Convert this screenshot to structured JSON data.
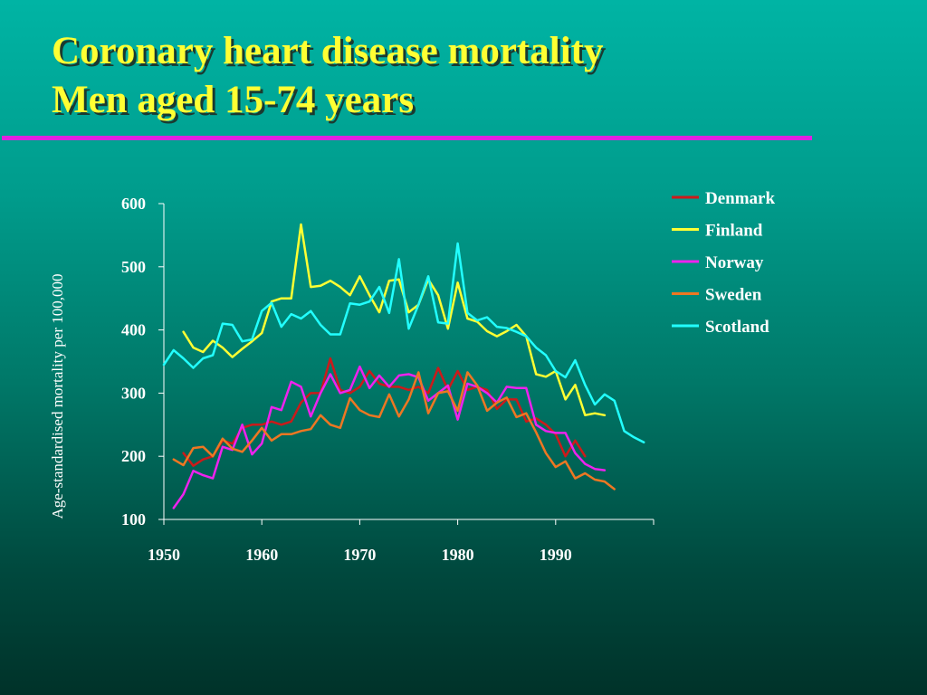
{
  "slide": {
    "title_line1": "Coronary heart disease mortality",
    "title_line2": "Men aged 15-74 years",
    "rule_color": "#e020e0"
  },
  "chart_data": {
    "type": "line",
    "title": "",
    "xlabel": "",
    "ylabel": "Age-standardised mortality per 100,000",
    "xlim": [
      1950,
      2000
    ],
    "ylim": [
      100,
      600
    ],
    "xticks": [
      1950,
      1960,
      1970,
      1980,
      1990
    ],
    "yticks": [
      100,
      200,
      300,
      400,
      500,
      600
    ],
    "grid": false,
    "legend_position": "top-right",
    "series": [
      {
        "name": "Denmark",
        "color": "#cc1a1a",
        "x": [
          1952,
          1953,
          1954,
          1955,
          1956,
          1957,
          1958,
          1959,
          1960,
          1961,
          1962,
          1963,
          1964,
          1965,
          1966,
          1967,
          1968,
          1969,
          1970,
          1971,
          1972,
          1973,
          1974,
          1975,
          1976,
          1977,
          1978,
          1979,
          1980,
          1981,
          1982,
          1983,
          1984,
          1985,
          1986,
          1987,
          1988,
          1989,
          1990,
          1991,
          1992,
          1993
        ],
        "y": [
          205,
          185,
          195,
          200,
          225,
          220,
          245,
          250,
          250,
          255,
          250,
          255,
          285,
          300,
          300,
          355,
          305,
          300,
          310,
          335,
          315,
          310,
          310,
          305,
          310,
          300,
          340,
          305,
          335,
          305,
          310,
          305,
          275,
          290,
          290,
          255,
          260,
          250,
          235,
          200,
          225,
          200
        ]
      },
      {
        "name": "Finland",
        "color": "#ffff33",
        "x": [
          1952,
          1953,
          1954,
          1955,
          1956,
          1957,
          1958,
          1959,
          1960,
          1961,
          1962,
          1963,
          1964,
          1965,
          1966,
          1967,
          1968,
          1969,
          1970,
          1971,
          1972,
          1973,
          1974,
          1975,
          1976,
          1977,
          1978,
          1979,
          1980,
          1981,
          1982,
          1983,
          1984,
          1985,
          1986,
          1987,
          1988,
          1989,
          1990,
          1991,
          1992,
          1993,
          1994,
          1995
        ],
        "y": [
          397,
          372,
          365,
          383,
          372,
          357,
          370,
          382,
          395,
          445,
          450,
          450,
          567,
          468,
          470,
          478,
          468,
          455,
          485,
          455,
          428,
          478,
          480,
          428,
          440,
          480,
          455,
          402,
          475,
          418,
          413,
          398,
          390,
          398,
          408,
          390,
          330,
          326,
          335,
          290,
          313,
          265,
          268,
          265
        ]
      },
      {
        "name": "Norway",
        "color": "#ee22ee",
        "x": [
          1951,
          1952,
          1953,
          1954,
          1955,
          1956,
          1957,
          1958,
          1959,
          1960,
          1961,
          1962,
          1963,
          1964,
          1965,
          1966,
          1967,
          1968,
          1969,
          1970,
          1971,
          1972,
          1973,
          1974,
          1975,
          1976,
          1977,
          1978,
          1979,
          1980,
          1981,
          1982,
          1983,
          1984,
          1985,
          1986,
          1987,
          1988,
          1989,
          1990,
          1991,
          1992,
          1993,
          1994,
          1995
        ],
        "y": [
          118,
          140,
          177,
          170,
          165,
          215,
          210,
          250,
          203,
          220,
          278,
          273,
          318,
          310,
          263,
          300,
          330,
          300,
          305,
          342,
          308,
          328,
          310,
          328,
          330,
          325,
          288,
          300,
          312,
          258,
          315,
          310,
          300,
          285,
          310,
          308,
          308,
          250,
          240,
          237,
          237,
          205,
          188,
          180,
          178
        ]
      },
      {
        "name": "Sweden",
        "color": "#ee7722",
        "x": [
          1951,
          1952,
          1953,
          1954,
          1955,
          1956,
          1957,
          1958,
          1959,
          1960,
          1961,
          1962,
          1963,
          1964,
          1965,
          1966,
          1967,
          1968,
          1969,
          1970,
          1971,
          1972,
          1973,
          1974,
          1975,
          1976,
          1977,
          1978,
          1979,
          1980,
          1981,
          1982,
          1983,
          1984,
          1985,
          1986,
          1987,
          1988,
          1989,
          1990,
          1991,
          1992,
          1993,
          1994,
          1995,
          1996
        ],
        "y": [
          195,
          186,
          213,
          215,
          200,
          228,
          212,
          207,
          225,
          245,
          225,
          235,
          235,
          240,
          243,
          265,
          250,
          245,
          292,
          273,
          265,
          262,
          298,
          263,
          290,
          333,
          268,
          300,
          303,
          272,
          333,
          312,
          272,
          285,
          293,
          262,
          268,
          238,
          205,
          183,
          192,
          165,
          173,
          163,
          160,
          148
        ]
      },
      {
        "name": "Scotland",
        "color": "#22ffff",
        "x": [
          1950,
          1951,
          1952,
          1953,
          1954,
          1955,
          1956,
          1957,
          1958,
          1959,
          1960,
          1961,
          1962,
          1963,
          1964,
          1965,
          1966,
          1967,
          1968,
          1969,
          1970,
          1971,
          1972,
          1973,
          1974,
          1975,
          1976,
          1977,
          1978,
          1979,
          1980,
          1981,
          1982,
          1983,
          1984,
          1985,
          1986,
          1987,
          1988,
          1989,
          1990,
          1991,
          1992,
          1993,
          1994,
          1995,
          1996,
          1997,
          1998,
          1999
        ],
        "y": [
          345,
          368,
          355,
          340,
          355,
          360,
          410,
          408,
          382,
          385,
          430,
          443,
          405,
          425,
          418,
          430,
          408,
          393,
          393,
          442,
          440,
          445,
          468,
          427,
          512,
          402,
          440,
          485,
          412,
          410,
          537,
          427,
          415,
          420,
          405,
          403,
          397,
          390,
          372,
          360,
          335,
          325,
          352,
          313,
          282,
          298,
          288,
          240,
          230,
          222
        ]
      }
    ]
  }
}
